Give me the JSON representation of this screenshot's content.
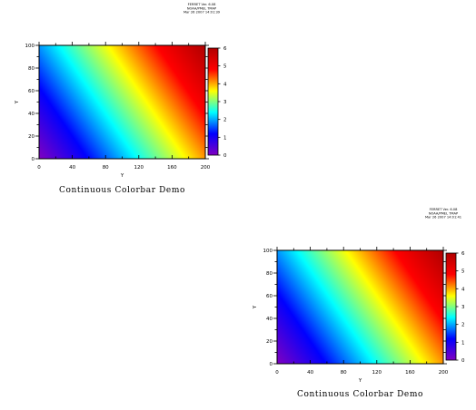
{
  "chart_data": [
    {
      "type": "heatmap",
      "title": "Continuous Colorbar Demo",
      "xlabel": "Y",
      "ylabel": "Y",
      "xlim": [
        0,
        200
      ],
      "ylim": [
        0,
        100
      ],
      "x_ticks": [
        "0",
        "40",
        "80",
        "120",
        "160",
        "200"
      ],
      "y_ticks": [
        "0",
        "20",
        "40",
        "60",
        "80",
        "100"
      ],
      "colorbar": {
        "range": [
          0,
          6
        ],
        "ticks": [
          "0",
          "1",
          "2",
          "3",
          "4",
          "5",
          "6"
        ]
      },
      "colormap": "rainbow",
      "colors": [
        "#8000c0",
        "#0000ff",
        "#00ffff",
        "#ffff00",
        "#ff0000",
        "#b00000"
      ],
      "stamp": [
        "FERRET Ver. 6.08",
        "NOAA/PMEL TMAP",
        "Mar 26 2007 14:01:39"
      ]
    },
    {
      "type": "heatmap",
      "title": "Continuous Colorbar Demo",
      "xlabel": "Y",
      "ylabel": "Y",
      "xlim": [
        0,
        200
      ],
      "ylim": [
        0,
        100
      ],
      "x_ticks": [
        "0",
        "40",
        "80",
        "120",
        "160",
        "200"
      ],
      "y_ticks": [
        "0",
        "20",
        "40",
        "60",
        "80",
        "100"
      ],
      "colorbar": {
        "range": [
          0,
          6
        ],
        "ticks": [
          "0",
          "1",
          "2",
          "3",
          "4",
          "5",
          "6"
        ]
      },
      "colormap": "rainbow",
      "colors": [
        "#8000c0",
        "#0000ff",
        "#00ffff",
        "#ffff00",
        "#ff0000",
        "#b00000"
      ],
      "stamp": [
        "FERRET Ver. 6.08",
        "NOAA/PMEL TMAP",
        "Mar 26 2007 14:01:41"
      ]
    }
  ]
}
